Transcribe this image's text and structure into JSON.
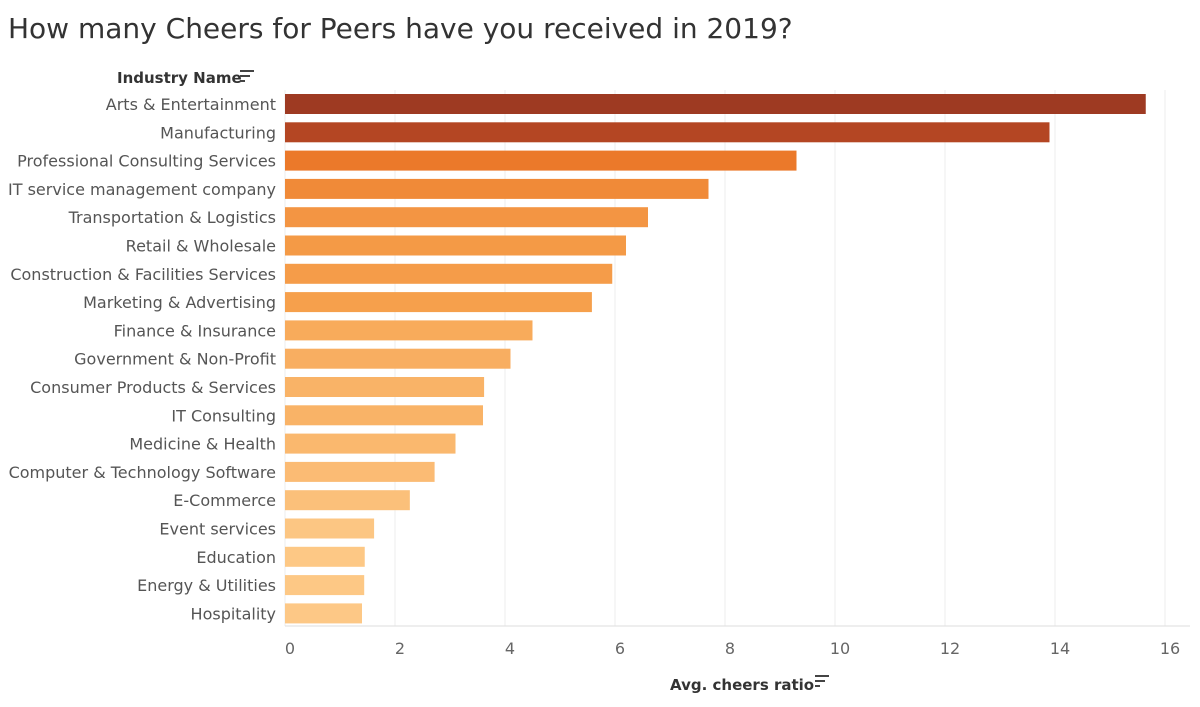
{
  "chart_data": {
    "type": "bar",
    "orientation": "horizontal",
    "title": "How many Cheers for Peers have you received in 2019?",
    "ylabel": "Industry Name",
    "xlabel": "Avg. cheers ratio",
    "xlim": [
      0,
      16
    ],
    "xticks": [
      "0",
      "2",
      "4",
      "6",
      "8",
      "10",
      "12",
      "14",
      "16"
    ],
    "grid": "vertical",
    "categories": [
      "Arts & Entertainment",
      "Manufacturing",
      "Professional Consulting Services",
      "IT service management company",
      "Transportation & Logistics",
      "Retail & Wholesale",
      "Construction & Facilities Services",
      "Marketing & Advertising",
      "Finance & Insurance",
      "Government & Non-Profit",
      "Consumer Products & Services",
      "IT Consulting",
      "Medicine & Health",
      "Computer & Technology Software",
      "E-Commerce",
      "Event services",
      "Education",
      "Energy & Utilities",
      "Hospitality"
    ],
    "values": [
      15.65,
      13.9,
      9.3,
      7.7,
      6.6,
      6.2,
      5.95,
      5.58,
      4.5,
      4.1,
      3.62,
      3.6,
      3.1,
      2.72,
      2.27,
      1.62,
      1.45,
      1.44,
      1.4
    ],
    "color_low": "#fdc987",
    "color_high": "#9e3a22"
  }
}
